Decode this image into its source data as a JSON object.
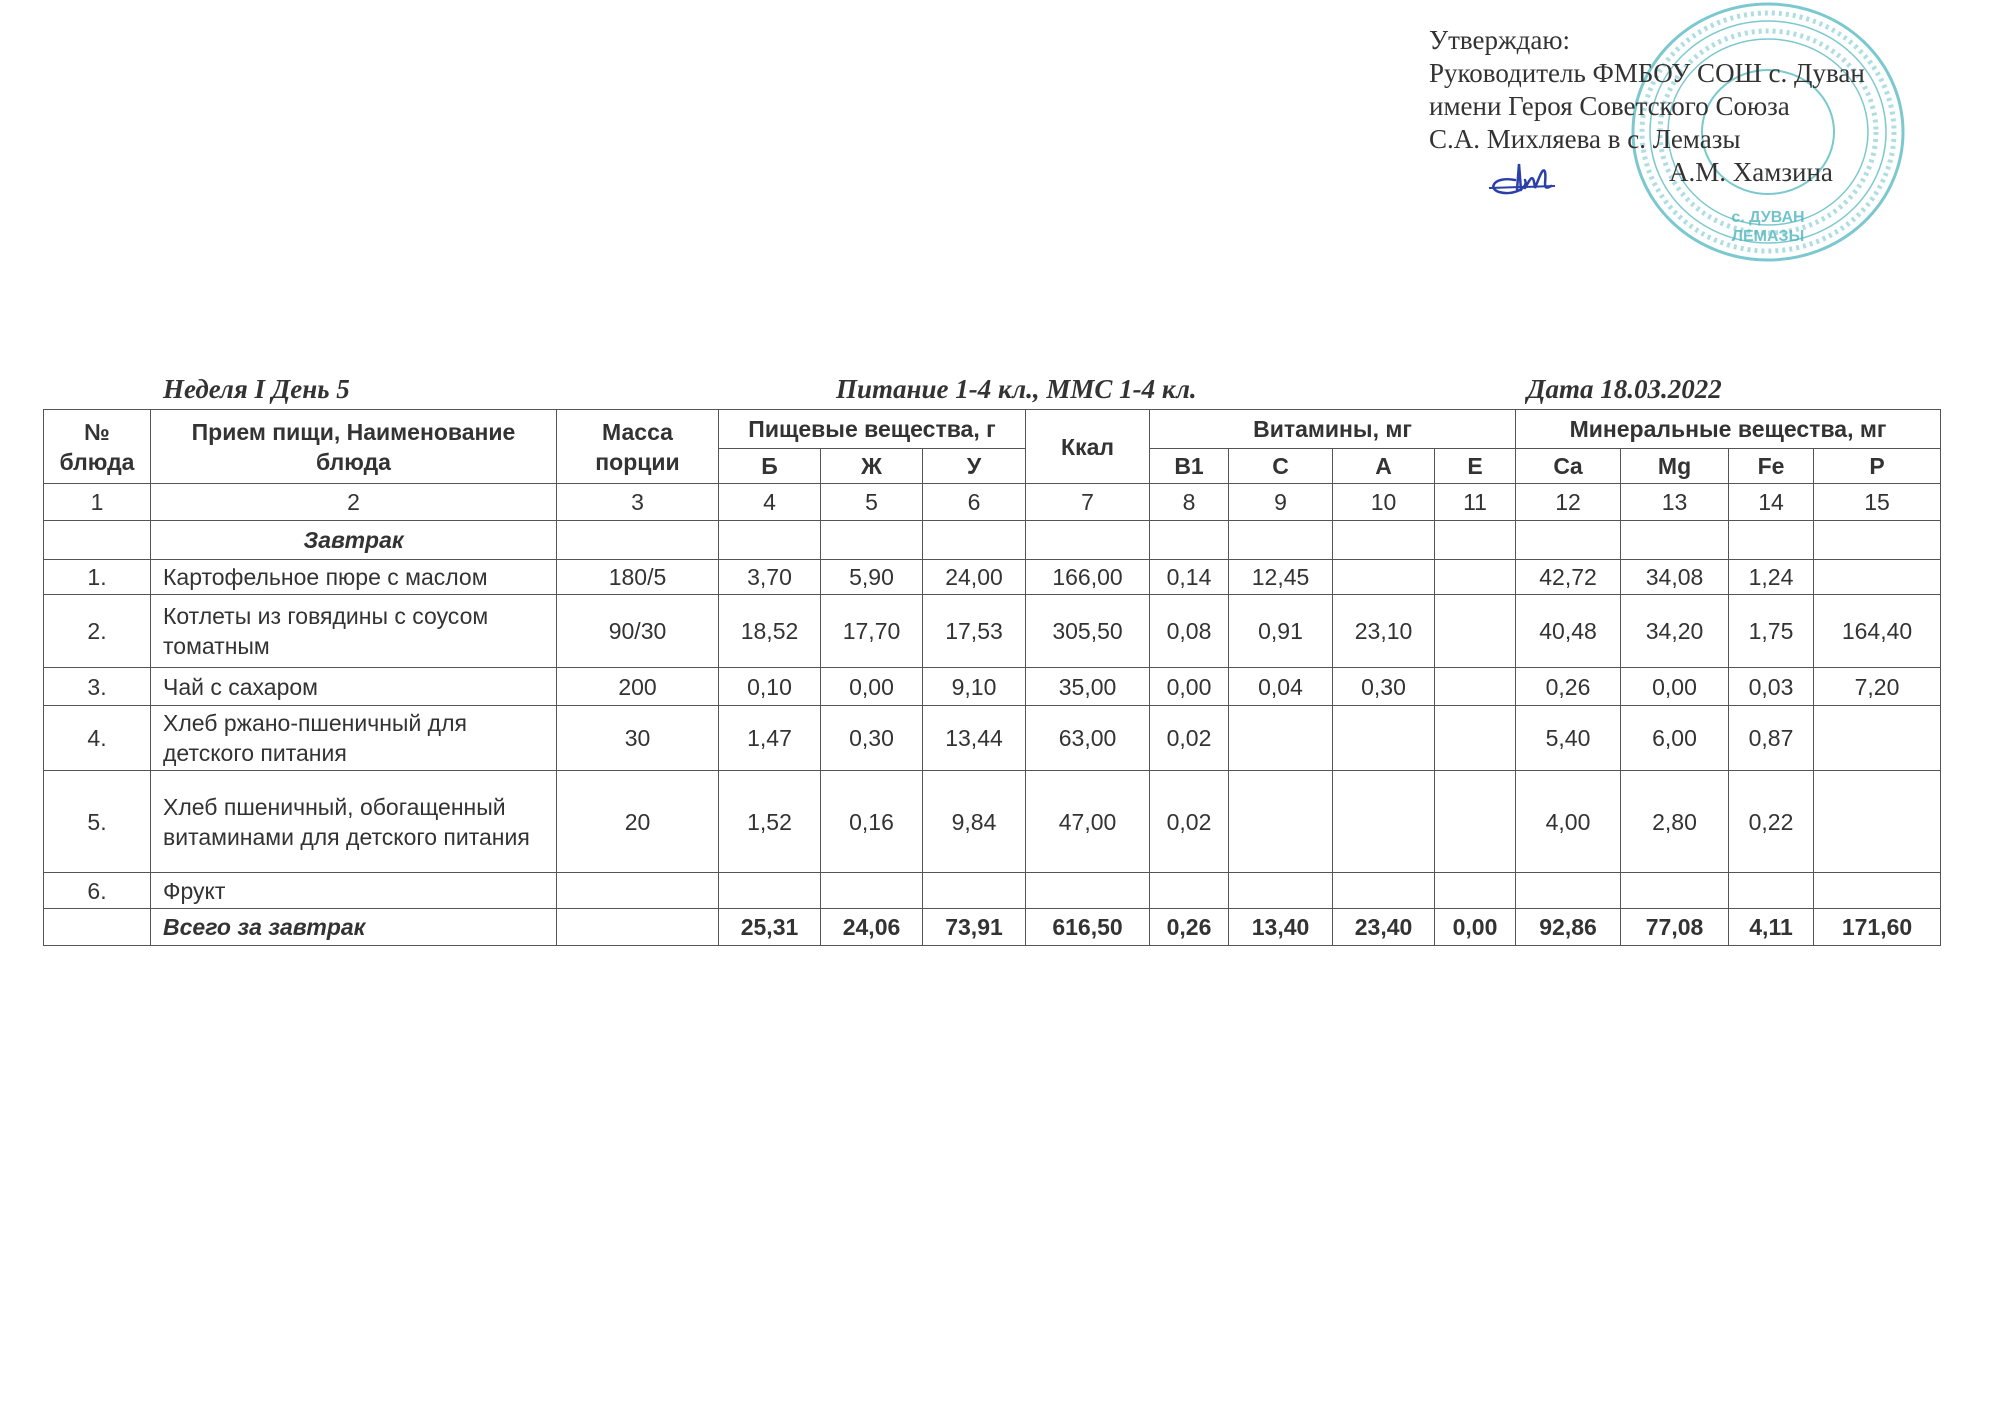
{
  "approval": {
    "lines": [
      "Утверждаю:",
      "Руководитель ФМБОУ СОШ с. Дуван",
      "имени Героя Советского Союза",
      "С.А. Михляева в с. Лемазы"
    ],
    "signatory": "А.М. Хамзина",
    "stamp_text": [
      "с. ДУВАН",
      "ЛЕМАЗЫ"
    ],
    "stamp_color": "#4fb6bf",
    "signature_color": "#2a3fa8"
  },
  "header": {
    "week_day": "Неделя I День 5",
    "audience": "Питание  1-4 кл., ММС 1-4 кл.",
    "date": "Дата  18.03.2022"
  },
  "table": {
    "head": {
      "num": "№ блюда",
      "name": "Прием пищи, Наименование блюда",
      "mass": "Масса порции",
      "nutrients": "Пищевые вещества, г",
      "kcal": "Ккал",
      "vitamins": "Витамины, мг",
      "minerals": "Минеральные вещества, мг",
      "sub": [
        "Б",
        "Ж",
        "У",
        "B1",
        "C",
        "A",
        "E",
        "Ca",
        "Mg",
        "Fe",
        "P"
      ]
    },
    "col_numbers": [
      "1",
      "2",
      "3",
      "4",
      "5",
      "6",
      "7",
      "8",
      "9",
      "10",
      "11",
      "12",
      "13",
      "14",
      "15"
    ],
    "section": "Завтрак",
    "rows": [
      [
        "1.",
        "Картофельное пюре с маслом",
        "180/5",
        "3,70",
        "5,90",
        "24,00",
        "166,00",
        "0,14",
        "12,45",
        "",
        "",
        "42,72",
        "34,08",
        "1,24",
        ""
      ],
      [
        "2.",
        "Котлеты из говядины с соусом томатным",
        "90/30",
        "18,52",
        "17,70",
        "17,53",
        "305,50",
        "0,08",
        "0,91",
        "23,10",
        "",
        "40,48",
        "34,20",
        "1,75",
        "164,40"
      ],
      [
        "3.",
        "Чай с сахаром",
        "200",
        "0,10",
        "0,00",
        "9,10",
        "35,00",
        "0,00",
        "0,04",
        "0,30",
        "",
        "0,26",
        "0,00",
        "0,03",
        "7,20"
      ],
      [
        "4.",
        "Хлеб ржано-пшеничный для детского питания",
        "30",
        "1,47",
        "0,30",
        "13,44",
        "63,00",
        "0,02",
        "",
        "",
        "",
        "5,40",
        "6,00",
        "0,87",
        ""
      ],
      [
        "5.",
        "Хлеб пшеничный, обогащенный витаминами для детского питания",
        "20",
        "1,52",
        "0,16",
        "9,84",
        "47,00",
        "0,02",
        "",
        "",
        "",
        "4,00",
        "2,80",
        "0,22",
        ""
      ],
      [
        "6.",
        "Фрукт",
        "",
        "",
        "",
        "",
        "",
        "",
        "",
        "",
        "",
        "",
        "",
        "",
        ""
      ]
    ],
    "total": [
      "",
      "Всего за завтрак",
      "",
      "25,31",
      "24,06",
      "73,91",
      "616,50",
      "0,26",
      "13,40",
      "23,40",
      "0,00",
      "92,86",
      "77,08",
      "4,11",
      "171,60"
    ]
  }
}
